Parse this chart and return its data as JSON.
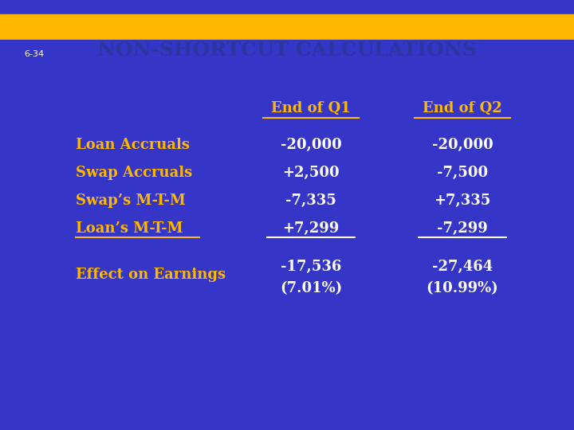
{
  "title": "NON-SHORTCUT CALCULATIONS",
  "title_bg": "#FFB800",
  "title_color": "#2B35A0",
  "bg_color": "#3535C8",
  "gold_color": "#FFB800",
  "white_color": "#FFFFFF",
  "footer_text": "6-34",
  "col_headers": [
    "End of Q1",
    "End of Q2"
  ],
  "row_labels": [
    "Loan Accruals",
    "Swap Accruals",
    "Swap’s M-T-M",
    "Loan’s M-T-M"
  ],
  "row_label_underline": [
    false,
    false,
    false,
    true
  ],
  "col1_values": [
    "-20,000",
    "+2,500",
    "-7,335",
    "+7,299"
  ],
  "col2_values": [
    "-20,000",
    "-7,500",
    "+7,335",
    "-7,299"
  ],
  "col1_underline": [
    false,
    false,
    false,
    true
  ],
  "col2_underline": [
    false,
    false,
    false,
    true
  ],
  "effect_label": "Effect on Earnings",
  "effect_col1_line1": "-17,536",
  "effect_col1_line2": "(7.01%)",
  "effect_col2_line1": "-27,464",
  "effect_col2_line2": "(10.99%)"
}
